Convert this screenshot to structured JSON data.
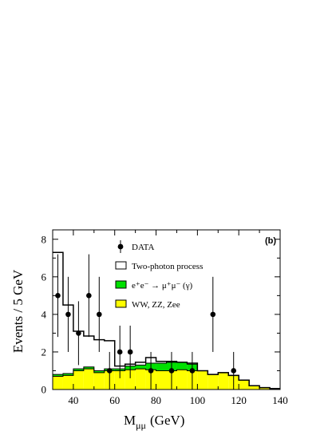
{
  "chart_data": {
    "type": "histogram",
    "panel_label": "(b)",
    "xlabel_main": "M",
    "xlabel_sub": "μμ",
    "xlabel_unit": "(GeV)",
    "ylabel": "Events / 5 GeV",
    "xlim": [
      30,
      140
    ],
    "ylim": [
      0,
      8.5
    ],
    "xticks": [
      "40",
      "60",
      "80",
      "100",
      "120",
      "140"
    ],
    "yticks": [
      "0",
      "2",
      "4",
      "6",
      "8"
    ],
    "legend": {
      "placement": "top-center",
      "entries": [
        {
          "label": "DATA",
          "style": "marker"
        },
        {
          "label": "Two-photon process",
          "style": "open"
        },
        {
          "label": "e⁺e⁻ → μ⁺μ⁻ (γ)",
          "style": "green"
        },
        {
          "label": "WW, ZZ, Zee",
          "style": "yellow"
        }
      ]
    },
    "colors": {
      "yellow": "#ffff00",
      "green": "#00e000",
      "line": "#000000"
    },
    "bin_edges": [
      30,
      35,
      40,
      45,
      50,
      55,
      60,
      65,
      70,
      75,
      80,
      85,
      90,
      95,
      100,
      105,
      110,
      115,
      120,
      125,
      130,
      135,
      140
    ],
    "series": [
      {
        "name": "WW, ZZ, Zee",
        "values": [
          0.7,
          0.75,
          1.0,
          1.1,
          0.9,
          1.0,
          1.0,
          1.05,
          1.1,
          1.05,
          1.0,
          1.0,
          1.05,
          1.0,
          1.0,
          0.8,
          0.9,
          0.75,
          0.5,
          0.2,
          0.1,
          0.05
        ]
      },
      {
        "name": "e⁺e⁻ → μ⁺μ⁻ (γ)",
        "values": [
          0.1,
          0.1,
          0.1,
          0.1,
          0.1,
          0.1,
          0.1,
          0.2,
          0.2,
          0.35,
          0.4,
          0.45,
          0.4,
          0.35,
          0.0,
          0.0,
          0.0,
          0.0,
          0.0,
          0.0,
          0.0,
          0.0
        ]
      },
      {
        "name": "Two-photon process",
        "values": [
          6.5,
          3.65,
          2.0,
          1.65,
          1.65,
          1.5,
          0.15,
          0.1,
          0.15,
          0.3,
          0.1,
          0.05,
          0.0,
          0.05,
          0.0,
          0.0,
          0.0,
          0.0,
          0.0,
          0.0,
          0.0,
          0.0
        ]
      }
    ],
    "data_points": [
      {
        "x": 32.5,
        "y": 5,
        "err": 2.2
      },
      {
        "x": 37.5,
        "y": 4,
        "err": 2.0
      },
      {
        "x": 42.5,
        "y": 3,
        "err": 1.7
      },
      {
        "x": 47.5,
        "y": 5,
        "err": 2.2
      },
      {
        "x": 52.5,
        "y": 4,
        "err": 2.0
      },
      {
        "x": 57.5,
        "y": 1,
        "err": 1.0
      },
      {
        "x": 62.5,
        "y": 2,
        "err": 1.4
      },
      {
        "x": 67.5,
        "y": 2,
        "err": 1.4
      },
      {
        "x": 77.5,
        "y": 1,
        "err": 1.0
      },
      {
        "x": 87.5,
        "y": 1,
        "err": 1.0
      },
      {
        "x": 97.5,
        "y": 1,
        "err": 1.0
      },
      {
        "x": 107.5,
        "y": 4,
        "err": 2.0
      },
      {
        "x": 117.5,
        "y": 1,
        "err": 1.0
      }
    ]
  }
}
